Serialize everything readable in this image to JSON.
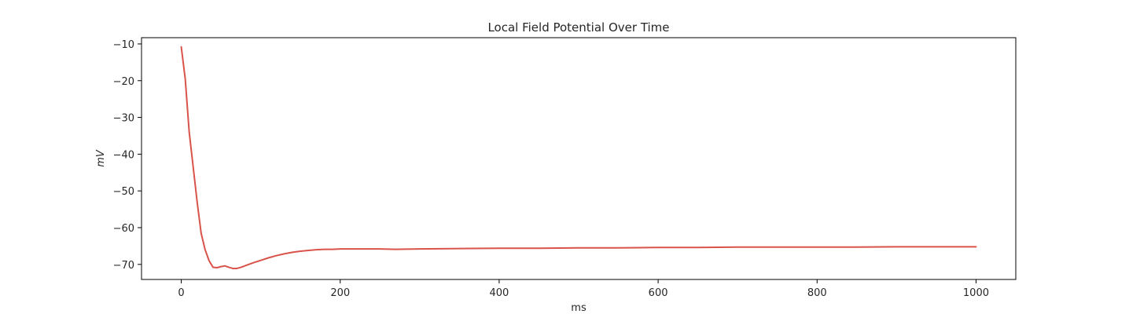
{
  "chart_data": {
    "type": "line",
    "title": "Local Field Potential Over Time",
    "xlabel": "ms",
    "ylabel": "mV",
    "xlim": [
      -50,
      1050
    ],
    "ylim": [
      -74.1,
      -8.3
    ],
    "xticks": [
      0,
      200,
      400,
      600,
      800,
      1000
    ],
    "yticks": [
      -10,
      -20,
      -30,
      -40,
      -50,
      -60,
      -70
    ],
    "xtick_labels": [
      "0",
      "200",
      "400",
      "600",
      "800",
      "1000"
    ],
    "ytick_labels": [
      "−10",
      "−20",
      "−30",
      "−40",
      "−50",
      "−60",
      "−70"
    ],
    "grid": false,
    "legend": "none",
    "series": [
      {
        "color": "#d9534a",
        "x": [
          0,
          5,
          10,
          15,
          20,
          25,
          30,
          35,
          40,
          45,
          50,
          55,
          60,
          65,
          70,
          75,
          80,
          85,
          90,
          100,
          110,
          120,
          130,
          140,
          150,
          160,
          170,
          180,
          190,
          200,
          220,
          250,
          270,
          300,
          350,
          400,
          450,
          500,
          550,
          600,
          650,
          700,
          750,
          800,
          850,
          900,
          950,
          1000
        ],
        "y": [
          -10.8,
          -19.5,
          -34.0,
          -43.5,
          -53.0,
          -61.5,
          -66.0,
          -69.0,
          -70.8,
          -70.9,
          -70.6,
          -70.4,
          -70.8,
          -71.1,
          -71.1,
          -70.8,
          -70.4,
          -70.0,
          -69.6,
          -68.9,
          -68.2,
          -67.6,
          -67.1,
          -66.7,
          -66.4,
          -66.2,
          -66.0,
          -65.9,
          -65.9,
          -65.8,
          -65.8,
          -65.8,
          -65.9,
          -65.8,
          -65.7,
          -65.6,
          -65.6,
          -65.5,
          -65.5,
          -65.4,
          -65.4,
          -65.3,
          -65.3,
          -65.3,
          -65.3,
          -65.2,
          -65.2,
          -65.2
        ]
      }
    ]
  }
}
